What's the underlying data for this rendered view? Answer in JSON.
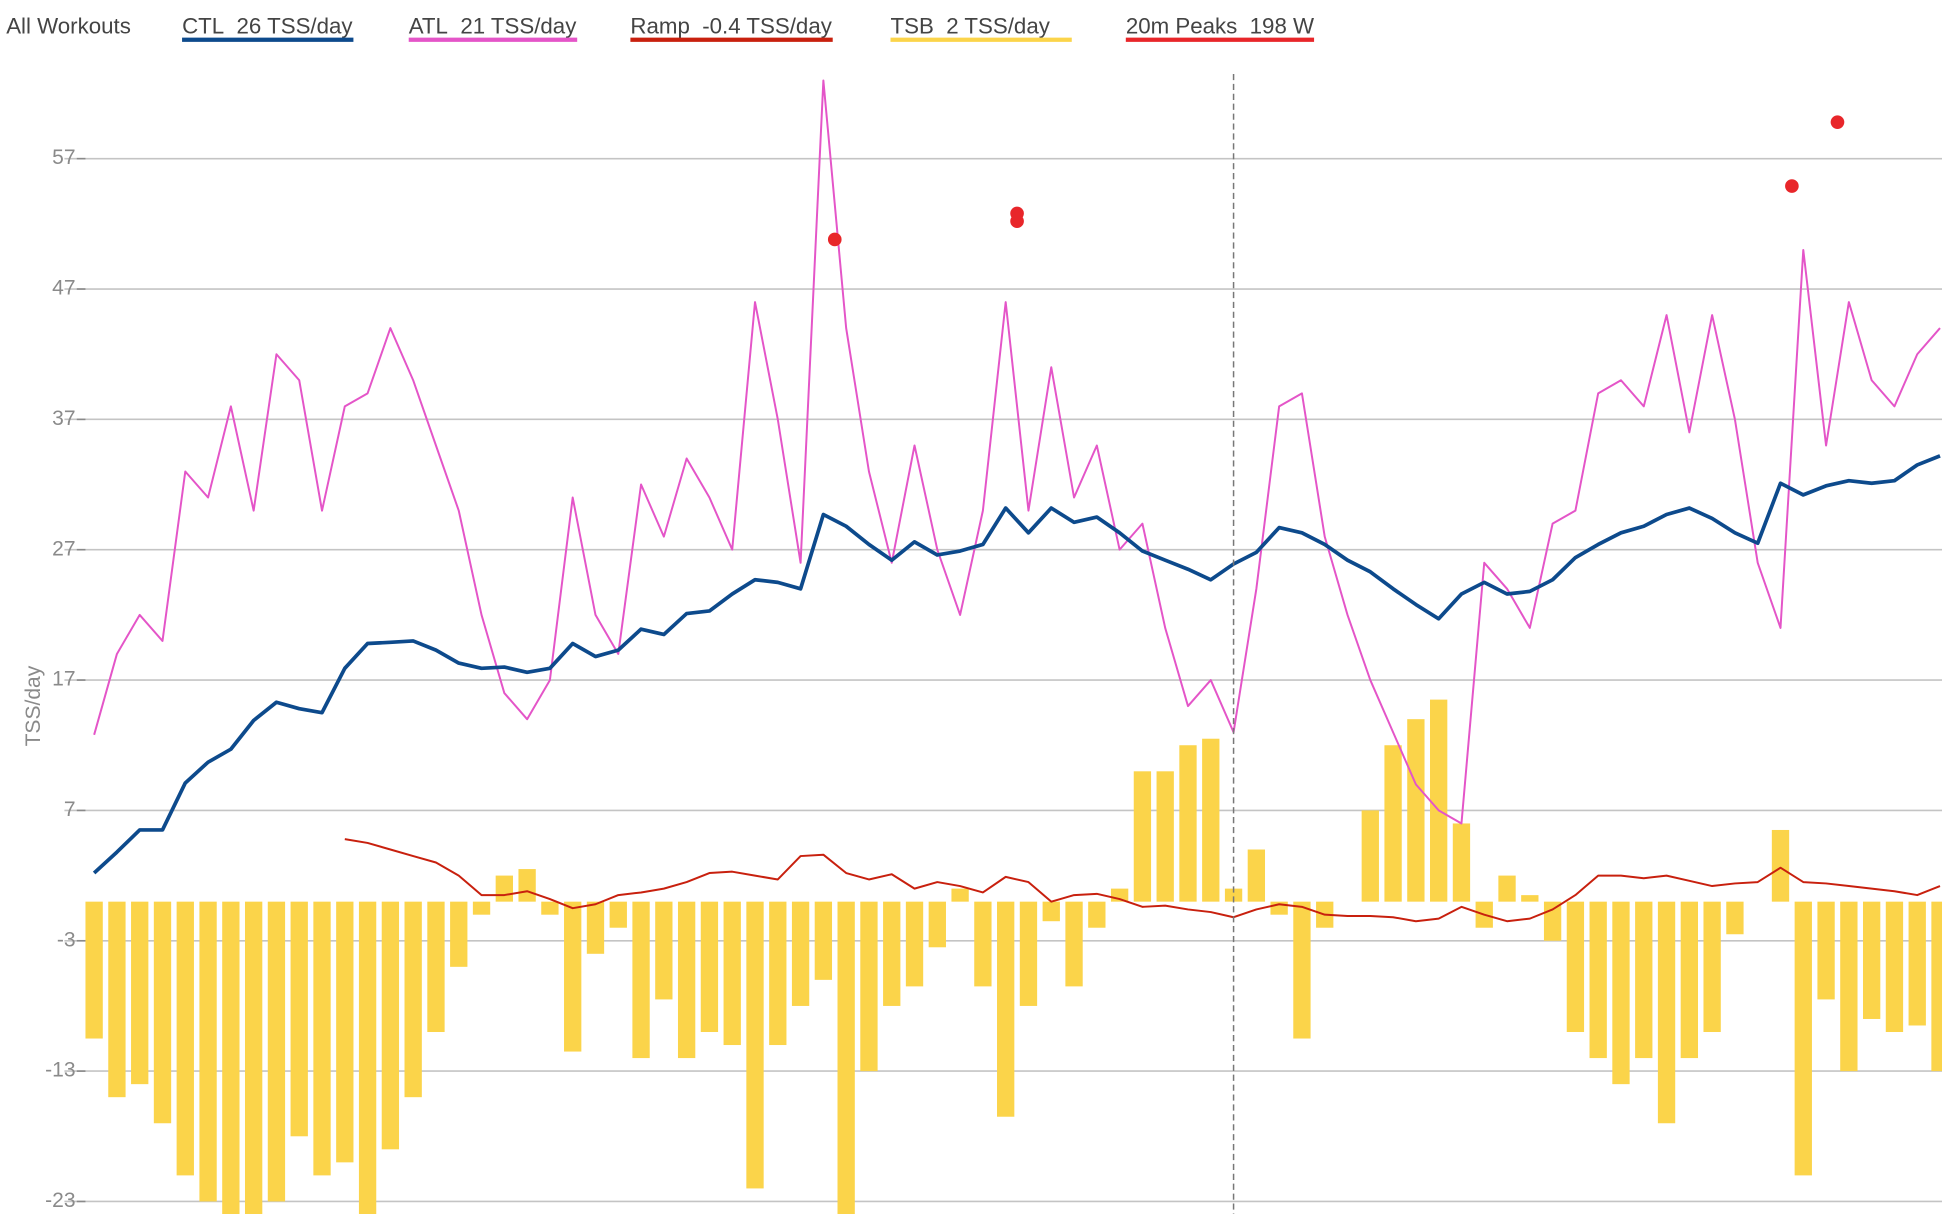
{
  "chart_data": {
    "type": "combo",
    "filter_label": "All Workouts",
    "y_label": "TSS/day",
    "legend": "top-left",
    "grid": true,
    "xlim": [
      0,
      162
    ],
    "ylim": [
      -24,
      63.5
    ],
    "yticks": [
      -23,
      -13,
      -3,
      7,
      17,
      27,
      37,
      47,
      57
    ],
    "marker_x": 100,
    "x": [
      0,
      2,
      4,
      6,
      8,
      10,
      12,
      14,
      16,
      18,
      20,
      22,
      24,
      26,
      28,
      30,
      32,
      34,
      36,
      38,
      40,
      42,
      44,
      46,
      48,
      50,
      52,
      54,
      56,
      58,
      60,
      62,
      64,
      66,
      68,
      70,
      72,
      74,
      76,
      78,
      80,
      82,
      84,
      86,
      88,
      90,
      92,
      94,
      96,
      98,
      100,
      102,
      104,
      106,
      108,
      110,
      112,
      114,
      116,
      118,
      120,
      122,
      124,
      126,
      128,
      130,
      132,
      134,
      136,
      138,
      140,
      142,
      144,
      146,
      148,
      150,
      152,
      154,
      156,
      158,
      160,
      162
    ],
    "series": [
      {
        "name": "TSB",
        "summary": "2 TSS/day",
        "type": "bar",
        "color": "#fbd44a",
        "values": [
          -10.5,
          -15,
          -14,
          -17,
          -21,
          -23,
          -24,
          -24,
          -23,
          -18,
          -21,
          -20,
          -24,
          -19,
          -15,
          -10,
          -5,
          -1,
          2,
          2.5,
          -1,
          -11.5,
          -4,
          -2,
          -12,
          -7.5,
          -12,
          -10,
          -11,
          -22,
          -11,
          -8,
          -6,
          -24,
          -13,
          -8,
          -6.5,
          -3.5,
          1,
          -6.5,
          -16.5,
          -8,
          -1.5,
          -6.5,
          -2,
          1,
          10,
          10,
          12,
          12.5,
          1,
          4,
          -1,
          -10.5,
          -2,
          0,
          7,
          12,
          14,
          15.5,
          6,
          -2,
          2,
          0.5,
          -3,
          -10,
          -12,
          -14,
          -12,
          -17,
          -12,
          -10,
          -2.5,
          0,
          5.5,
          -21,
          -7.5,
          -13,
          -9,
          -10,
          -9.5,
          -13
        ]
      },
      {
        "name": "ATL",
        "summary": "21 TSS/day",
        "type": "line",
        "color": "#e455c8",
        "width": 1.6,
        "values": [
          12.8,
          19,
          22,
          20,
          33,
          31,
          38,
          30,
          42,
          40,
          30,
          38,
          39,
          44,
          40,
          35,
          30,
          22,
          16,
          14,
          17,
          31,
          22,
          19,
          32,
          28,
          34,
          31,
          27,
          46,
          37,
          26,
          63,
          44,
          33,
          26,
          35,
          27,
          22,
          30,
          46,
          30,
          41,
          31,
          35,
          27,
          29,
          21,
          15,
          17,
          13,
          24,
          38,
          39,
          28,
          22,
          17,
          13,
          9,
          7,
          6,
          26,
          24,
          21,
          29,
          30,
          39,
          40,
          38,
          45,
          36,
          45,
          37,
          26,
          21,
          50,
          35,
          46,
          40,
          38,
          42,
          44
        ]
      },
      {
        "name": "Ramp",
        "summary": "-0.4 TSS/day",
        "type": "line",
        "color": "#c8200e",
        "width": 1.6,
        "values": [
          null,
          null,
          null,
          null,
          null,
          null,
          null,
          null,
          null,
          null,
          null,
          4.8,
          4.5,
          4,
          3.5,
          3,
          2,
          0.5,
          0.5,
          0.8,
          0.2,
          -0.5,
          -0.2,
          0.5,
          0.7,
          1,
          1.5,
          2.2,
          2.3,
          2,
          1.7,
          3.5,
          3.6,
          2.2,
          1.7,
          2.1,
          1,
          1.5,
          1.2,
          0.7,
          1.9,
          1.5,
          0,
          0.5,
          0.6,
          0.2,
          -0.4,
          -0.3,
          -0.6,
          -0.8,
          -1.2,
          -0.6,
          -0.2,
          -0.4,
          -1,
          -1.1,
          -1.1,
          -1.2,
          -1.5,
          -1.3,
          -0.4,
          -1,
          -1.5,
          -1.3,
          -0.6,
          0.5,
          2,
          2,
          1.8,
          2,
          1.6,
          1.2,
          1.4,
          1.5,
          2.6,
          1.5,
          1.4,
          1.2,
          1,
          0.8,
          0.5,
          1.2
        ]
      },
      {
        "name": "CTL",
        "summary": "26 TSS/day",
        "type": "line",
        "color": "#0d4a8c",
        "width": 3,
        "values": [
          2.2,
          3.8,
          5.5,
          5.5,
          9.1,
          10.7,
          11.7,
          13.9,
          15.3,
          14.8,
          14.5,
          17.9,
          19.8,
          19.9,
          20,
          19.3,
          18.3,
          17.9,
          18,
          17.6,
          17.9,
          19.8,
          18.8,
          19.3,
          20.9,
          20.5,
          22.1,
          22.3,
          23.6,
          24.7,
          24.5,
          24,
          29.7,
          28.8,
          27.4,
          26.2,
          27.6,
          26.6,
          26.9,
          27.4,
          30.2,
          28.3,
          30.2,
          29.1,
          29.5,
          28.3,
          26.9,
          26.2,
          25.5,
          24.7,
          25.9,
          26.8,
          28.7,
          28.3,
          27.4,
          26.2,
          25.3,
          24,
          22.8,
          21.7,
          23.6,
          24.5,
          23.6,
          23.8,
          24.7,
          26.4,
          27.4,
          28.3,
          28.8,
          29.7,
          30.2,
          29.4,
          28.3,
          27.5,
          32.1,
          31.2,
          31.9,
          32.3,
          32.1,
          32.3,
          33.5,
          34.2
        ]
      },
      {
        "name": "20m Peaks",
        "summary": "198 W",
        "type": "scatter",
        "color": "#e8262a",
        "x": [
          65,
          81,
          81,
          149,
          153
        ],
        "values": [
          50.8,
          52.8,
          52.2,
          54.9,
          59.8
        ]
      }
    ]
  }
}
